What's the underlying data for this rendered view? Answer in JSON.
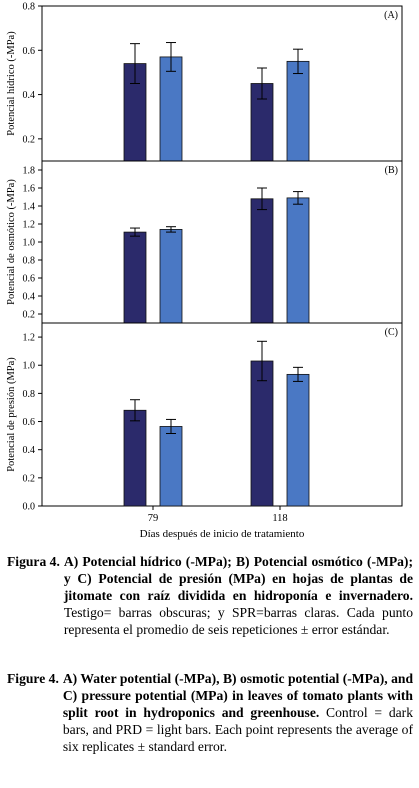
{
  "chart_data": {
    "type": "bar",
    "categories": [
      "79",
      "118"
    ],
    "xlabel": "Días después de inicio de tratamiento",
    "colors": {
      "dark": "#2b2a6b",
      "light": "#4a78c4"
    },
    "panels": [
      {
        "label": "(A)",
        "ylabel": "Potencial hídrico (-MPa)",
        "ylim": [
          0.1,
          0.8
        ],
        "yticks": [
          "0.2",
          "0.4",
          "0.6",
          "0.8"
        ],
        "series": [
          {
            "values": [
              0.54,
              0.45
            ],
            "errors": [
              0.09,
              0.07
            ],
            "color": "dark"
          },
          {
            "values": [
              0.57,
              0.55
            ],
            "errors": [
              0.065,
              0.055
            ],
            "color": "light"
          }
        ]
      },
      {
        "label": "(B)",
        "ylabel": "Potencial de osmótico (-MPa)",
        "ylim": [
          0.1,
          1.9
        ],
        "yticks": [
          "0.2",
          "0.4",
          "0.6",
          "0.8",
          "1.0",
          "1.2",
          "1.4",
          "1.6",
          "1.8"
        ],
        "series": [
          {
            "values": [
              1.11,
              1.48
            ],
            "errors": [
              0.045,
              0.12
            ],
            "color": "dark"
          },
          {
            "values": [
              1.14,
              1.49
            ],
            "errors": [
              0.03,
              0.07
            ],
            "color": "light"
          }
        ]
      },
      {
        "label": "(C)",
        "ylabel": "Potencial de presión (MPa)",
        "ylim": [
          0.0,
          1.3
        ],
        "yticks": [
          "0.0",
          "0.2",
          "0.4",
          "0.6",
          "0.8",
          "1.0",
          "1.2"
        ],
        "series": [
          {
            "values": [
              0.68,
              1.03
            ],
            "errors": [
              0.075,
              0.14
            ],
            "color": "dark"
          },
          {
            "values": [
              0.565,
              0.935
            ],
            "errors": [
              0.05,
              0.05
            ],
            "color": "light"
          }
        ]
      }
    ]
  },
  "caption_es": {
    "label": "Figura 4.",
    "bold": "A) Potencial hídrico (-MPa); B) Potencial osmótico (-MPa); y C) Potencial de presión (MPa) en hojas de plantas de jitomate con raíz dividida en hidroponía e invernadero.",
    "text": " Testigo= barras obscuras; y SPR=barras claras. Cada punto representa el promedio de seis repeticiones ± error estándar."
  },
  "caption_en": {
    "label": "Figure 4.",
    "bold": "A) Water potential (-MPa), B) osmotic potential (-MPa), and C) pressure potential (MPa) in leaves of tomato plants with split root in hydroponics and greenhouse.",
    "text": " Control = dark bars, and PRD = light bars. Each point represents the average of six replicates ± standard error."
  }
}
